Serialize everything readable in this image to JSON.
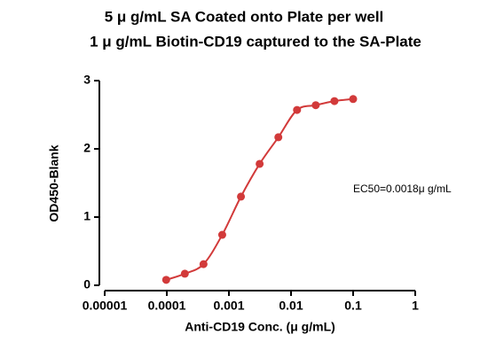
{
  "chart_data": {
    "type": "scatter",
    "title": "5 μ g/mL SA Coated onto Plate per well",
    "subtitle": "1 μ g/mL Biotin-CD19 captured to the SA-Plate",
    "x_label": "Anti-CD19 Conc. (μ g/mL)",
    "y_label": "OD450-Blank",
    "annotation": "EC50=0.0018μ g/mL",
    "x": [
      9.77e-05,
      0.000195,
      0.00039,
      0.00078,
      0.0015625,
      0.003125,
      0.00625,
      0.0125,
      0.025,
      0.05,
      0.1
    ],
    "series": [
      {
        "name": "Anti-CD19",
        "color": "#d23a3a",
        "values": [
          0.08,
          0.17,
          0.31,
          0.74,
          1.3,
          1.78,
          2.17,
          2.57,
          2.64,
          2.7,
          2.73
        ]
      }
    ],
    "xscale": "log",
    "xlim": [
      1e-05,
      1
    ],
    "xticks": [
      1e-05,
      0.0001,
      0.001,
      0.01,
      0.1,
      1
    ],
    "ylim": [
      0,
      3
    ],
    "yticks": [
      0,
      1,
      2,
      3
    ],
    "grid": false
  }
}
